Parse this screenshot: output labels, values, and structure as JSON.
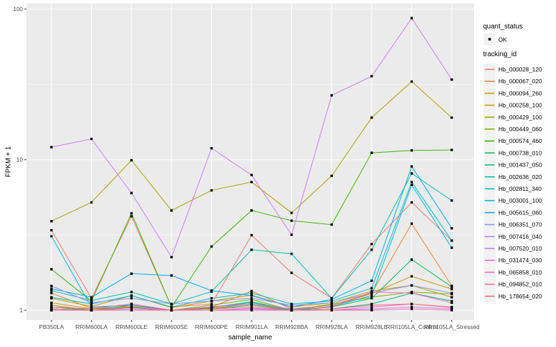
{
  "figure": {
    "background": "#FFFFFF",
    "panel_background": "#EBEBEB",
    "grid_color": "#FFFFFF",
    "tick_color": "#333333",
    "tick_label_color": "#4D4D4D",
    "text_color": "#000000",
    "point_color": "#000000",
    "legend_key_background": "#F2F2F2"
  },
  "legend": {
    "quant_status_title": "quant_status",
    "ok_label": "OK",
    "tracking_id_title": "tracking_id"
  },
  "chart_data": {
    "type": "line",
    "title": "",
    "xlabel": "sample_name",
    "ylabel": "FPKM + 1",
    "y_scale": "log10",
    "ylim": [
      1,
      100
    ],
    "y_ticks": [
      1,
      10,
      100
    ],
    "y_minor_ticks": [
      3.1623,
      31.623
    ],
    "grid": true,
    "legend_position": "right",
    "point_marker": "black-square",
    "categories": [
      "PB350LA",
      "RRIM600LA",
      "RRIM600LE",
      "RRIM600SE",
      "RRIM600PE",
      "RRIM901LA",
      "RRIM928BA",
      "RRIM928LA",
      "RRIM928LE",
      "RRII105LA_Control",
      "RRII105LA_Stressed"
    ],
    "series": [
      {
        "name": "Hb_000028_120",
        "color": "#F8766D",
        "values": [
          3.4,
          1.2,
          4.2,
          1.05,
          1.1,
          3.15,
          1.77,
          1.2,
          2.75,
          5.2,
          2.9
        ]
      },
      {
        "name": "Hb_000067_020",
        "color": "#EA8331",
        "values": [
          1.3,
          1.03,
          1.1,
          1.0,
          1.05,
          1.34,
          1.02,
          1.08,
          1.3,
          3.76,
          1.45
        ]
      },
      {
        "name": "Hb_000094_260",
        "color": "#D89000",
        "values": [
          1.12,
          1.02,
          1.06,
          1.0,
          1.03,
          1.1,
          1.0,
          1.06,
          1.29,
          1.68,
          1.38
        ]
      },
      {
        "name": "Hb_000258_100",
        "color": "#C09B00",
        "values": [
          1.2,
          1.06,
          1.25,
          1.04,
          1.15,
          1.26,
          1.05,
          1.12,
          1.34,
          1.46,
          1.22
        ]
      },
      {
        "name": "Hb_000429_100",
        "color": "#A3A500",
        "values": [
          3.9,
          5.2,
          9.9,
          4.6,
          6.25,
          7.1,
          4.43,
          7.8,
          19.0,
          33.0,
          19.0
        ]
      },
      {
        "name": "Hb_000449_060",
        "color": "#7CAE00",
        "values": [
          1.08,
          1.0,
          1.05,
          1.0,
          1.08,
          1.18,
          1.0,
          1.1,
          1.22,
          1.32,
          1.28
        ]
      },
      {
        "name": "Hb_000574_460",
        "color": "#39B600",
        "values": [
          1.87,
          1.15,
          4.4,
          1.05,
          2.65,
          4.6,
          3.93,
          3.7,
          11.1,
          11.5,
          11.6
        ]
      },
      {
        "name": "Hb_000738_010",
        "color": "#00BB4E",
        "values": [
          1.05,
          1.0,
          1.08,
          1.0,
          1.04,
          1.14,
          1.0,
          1.05,
          1.2,
          2.17,
          1.43
        ]
      },
      {
        "name": "Hb_001437_050",
        "color": "#00BF7D",
        "values": [
          1.02,
          1.0,
          1.04,
          1.0,
          1.02,
          1.08,
          1.0,
          1.02,
          1.1,
          1.3,
          1.15
        ]
      },
      {
        "name": "Hb_002636_020",
        "color": "#00C0A7",
        "values": [
          1.35,
          1.16,
          1.32,
          1.1,
          1.33,
          2.52,
          2.37,
          1.2,
          2.52,
          8.1,
          5.35
        ]
      },
      {
        "name": "Hb_002811_340",
        "color": "#00BFC4",
        "values": [
          1.22,
          1.1,
          1.25,
          1.05,
          1.2,
          1.3,
          1.1,
          1.15,
          1.4,
          7.1,
          2.9
        ]
      },
      {
        "name": "Hb_003001_100",
        "color": "#00B8E7",
        "values": [
          3.1,
          1.05,
          1.08,
          1.0,
          1.05,
          1.12,
          1.0,
          1.06,
          1.25,
          6.8,
          2.6
        ]
      },
      {
        "name": "Hb_005615_060",
        "color": "#00ACFC",
        "values": [
          1.39,
          1.22,
          1.75,
          1.7,
          1.35,
          1.25,
          1.05,
          1.18,
          1.57,
          9.0,
          3.5
        ]
      },
      {
        "name": "Hb_006351_070",
        "color": "#8B93FF",
        "values": [
          1.45,
          1.12,
          1.2,
          1.1,
          1.15,
          1.2,
          1.08,
          1.12,
          1.3,
          1.46,
          1.3
        ]
      },
      {
        "name": "Hb_007416_040",
        "color": "#B983FF",
        "values": [
          1.0,
          1.0,
          1.0,
          1.0,
          1.0,
          1.02,
          1.0,
          1.0,
          1.02,
          1.05,
          1.02
        ]
      },
      {
        "name": "Hb_007520_010",
        "color": "#D277FF",
        "values": [
          12.1,
          13.7,
          6.0,
          2.25,
          11.9,
          7.9,
          3.17,
          26.7,
          35.8,
          87.0,
          34.0
        ]
      },
      {
        "name": "Hb_031474_030",
        "color": "#F166E8",
        "values": [
          1.0,
          1.0,
          1.02,
          1.0,
          1.0,
          1.03,
          1.0,
          1.0,
          1.05,
          1.1,
          1.04
        ]
      },
      {
        "name": "Hb_065858_010",
        "color": "#FF61C7",
        "values": [
          1.05,
          1.02,
          1.1,
          1.0,
          1.05,
          1.1,
          1.02,
          1.05,
          1.32,
          1.3,
          1.12
        ]
      },
      {
        "name": "Hb_094852_010",
        "color": "#FF689E",
        "values": [
          1.0,
          1.0,
          1.0,
          1.0,
          1.0,
          1.0,
          1.0,
          1.0,
          1.0,
          1.02,
          1.0
        ]
      },
      {
        "name": "Hb_178654_020",
        "color": "#FF6C67",
        "values": [
          1.02,
          1.0,
          1.05,
          1.0,
          1.02,
          1.05,
          1.0,
          1.02,
          1.08,
          1.1,
          1.05
        ]
      }
    ]
  }
}
